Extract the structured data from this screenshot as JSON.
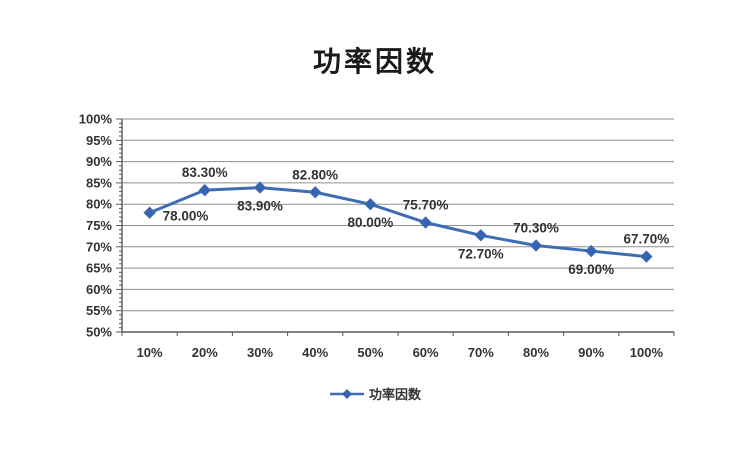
{
  "title": "功率因数",
  "legend": {
    "label": "功率因数"
  },
  "chart_data": {
    "type": "line",
    "title": "功率因数",
    "xlabel": "",
    "ylabel": "",
    "categories": [
      "10%",
      "20%",
      "30%",
      "40%",
      "50%",
      "60%",
      "70%",
      "80%",
      "90%",
      "100%"
    ],
    "series": [
      {
        "name": "功率因数",
        "values": [
          78.0,
          83.3,
          83.9,
          82.8,
          80.0,
          75.7,
          72.7,
          70.3,
          69.0,
          67.7
        ]
      }
    ],
    "data_labels": [
      "78.00%",
      "83.30%",
      "83.90%",
      "82.80%",
      "80.00%",
      "75.70%",
      "72.70%",
      "70.30%",
      "69.00%",
      "67.70%"
    ],
    "label_placement": [
      "right",
      "above",
      "below",
      "above",
      "below",
      "above",
      "below",
      "above",
      "below",
      "above"
    ],
    "ylim": [
      50,
      100
    ],
    "y_ticks": [
      "50%",
      "55%",
      "60%",
      "65%",
      "70%",
      "75%",
      "80%",
      "85%",
      "90%",
      "95%",
      "100%"
    ],
    "y_major_step": 5,
    "y_minor_step": 1,
    "grid": "horizontal-major",
    "legend_position": "bottom",
    "marker": "diamond",
    "colors": {
      "line": "#3e6db6",
      "marker": "#3565ae",
      "grid": "#909090",
      "axis": "#595959",
      "tick_text": "#333333",
      "data_label_text": "#333333"
    }
  }
}
